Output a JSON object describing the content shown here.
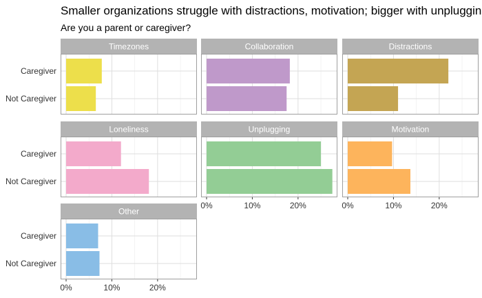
{
  "chart_data": {
    "type": "bar",
    "orientation": "horizontal",
    "title": "Smaller organizations struggle with distractions, motivation; bigger with unplugging",
    "subtitle": "Are you a parent or caregiver?",
    "categories": [
      "Caregiver",
      "Not Caregiver"
    ],
    "xlim": [
      0,
      0.28
    ],
    "x_ticks": [
      0,
      0.1,
      0.2
    ],
    "x_tick_labels": [
      "0%",
      "10%",
      "20%"
    ],
    "grid": true,
    "panels": [
      {
        "name": "Timezones",
        "color": "#eddf4b",
        "values": [
          0.078,
          0.065
        ]
      },
      {
        "name": "Collaboration",
        "color": "#bf99ca",
        "values": [
          0.182,
          0.175
        ]
      },
      {
        "name": "Distractions",
        "color": "#c4a553",
        "values": [
          0.22,
          0.11
        ]
      },
      {
        "name": "Loneliness",
        "color": "#f3aacb",
        "values": [
          0.12,
          0.181
        ]
      },
      {
        "name": "Unplugging",
        "color": "#93cd95",
        "values": [
          0.25,
          0.275
        ]
      },
      {
        "name": "Motivation",
        "color": "#fdb45c",
        "values": [
          0.097,
          0.137
        ]
      },
      {
        "name": "Other",
        "color": "#89bde6",
        "values": [
          0.07,
          0.073
        ]
      }
    ]
  }
}
